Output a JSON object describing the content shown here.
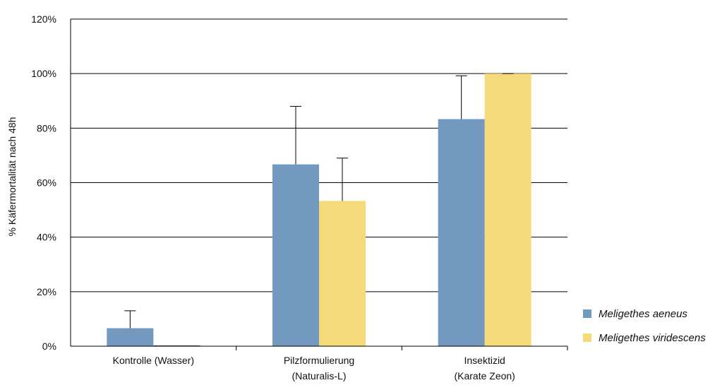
{
  "chart_data": {
    "type": "bar",
    "categories": [
      "Kontrolle (Wasser)",
      "Pilzformulierung\n(Naturalis-L)",
      "Insektizid\n(Karate Zeon)"
    ],
    "series": [
      {
        "name": "Meligethes aeneus",
        "values": [
          6.6,
          66.7,
          83.3
        ],
        "error_plus": [
          6.4,
          21.3,
          15.9
        ],
        "color": "#7399bf"
      },
      {
        "name": "Meligethes viridescens",
        "values": [
          0,
          53.3,
          100
        ],
        "error_plus": [
          0,
          15.7,
          0
        ],
        "color": "#f5da7b"
      }
    ],
    "title": "",
    "xlabel": "",
    "ylabel": "% Käfermortalität nach 48h",
    "yticks": [
      "0%",
      "20%",
      "40%",
      "60%",
      "80%",
      "100%",
      "120%"
    ],
    "ylim": [
      0,
      120
    ],
    "grid": "horizontal",
    "legend_position": "right"
  }
}
